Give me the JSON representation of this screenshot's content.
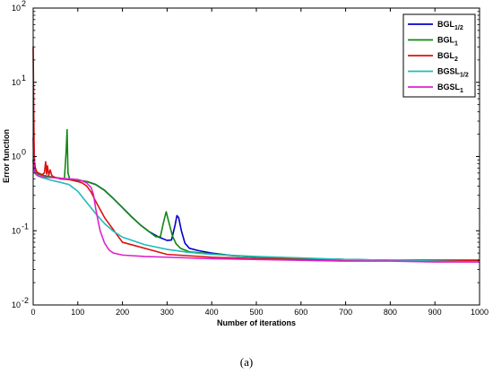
{
  "chart_data": {
    "type": "line",
    "title": "",
    "xlabel": "Number of iterations",
    "ylabel": "Error function",
    "xlim": [
      0,
      1000
    ],
    "ylim": [
      0.01,
      100
    ],
    "yscale": "log",
    "x_ticks": [
      0,
      100,
      200,
      300,
      400,
      500,
      600,
      700,
      800,
      900,
      1000
    ],
    "y_ticks": [
      {
        "value": 0.01,
        "base": "10",
        "exp": "-2"
      },
      {
        "value": 0.1,
        "base": "10",
        "exp": "-1"
      },
      {
        "value": 1,
        "base": "10",
        "exp": "0"
      },
      {
        "value": 10,
        "base": "10",
        "exp": "1"
      },
      {
        "value": 100,
        "base": "10",
        "exp": "2"
      }
    ],
    "grid": false,
    "legend_position": "top-right",
    "series": [
      {
        "name": "BGL",
        "subscript": "1/2",
        "color": "#0000cc",
        "x": [
          0,
          2,
          5,
          10,
          20,
          40,
          60,
          80,
          100,
          120,
          140,
          160,
          180,
          200,
          220,
          240,
          260,
          280,
          300,
          310,
          318,
          322,
          326,
          332,
          340,
          350,
          370,
          400,
          450,
          500,
          600,
          700,
          800,
          900,
          1000
        ],
        "y": [
          0.9,
          0.7,
          0.63,
          0.59,
          0.56,
          0.53,
          0.51,
          0.49,
          0.48,
          0.46,
          0.42,
          0.35,
          0.27,
          0.205,
          0.155,
          0.12,
          0.097,
          0.083,
          0.074,
          0.075,
          0.12,
          0.16,
          0.15,
          0.1,
          0.068,
          0.058,
          0.054,
          0.05,
          0.046,
          0.044,
          0.042,
          0.041,
          0.04,
          0.04,
          0.04
        ]
      },
      {
        "name": "BGL",
        "subscript": "1",
        "color": "#118811",
        "x": [
          0,
          2,
          5,
          10,
          20,
          40,
          60,
          70,
          74,
          76,
          78,
          82,
          90,
          100,
          120,
          140,
          160,
          180,
          200,
          220,
          240,
          260,
          275,
          285,
          292,
          298,
          304,
          312,
          320,
          330,
          350,
          400,
          450,
          500,
          600,
          700,
          800,
          900,
          1000
        ],
        "y": [
          0.9,
          0.7,
          0.63,
          0.59,
          0.56,
          0.53,
          0.51,
          0.5,
          1.2,
          2.3,
          0.6,
          0.49,
          0.48,
          0.48,
          0.46,
          0.42,
          0.35,
          0.27,
          0.205,
          0.155,
          0.12,
          0.097,
          0.083,
          0.083,
          0.13,
          0.18,
          0.13,
          0.085,
          0.067,
          0.058,
          0.052,
          0.049,
          0.046,
          0.044,
          0.042,
          0.041,
          0.04,
          0.04,
          0.04
        ]
      },
      {
        "name": "BGL",
        "subscript": "2",
        "color": "#dd1111",
        "x": [
          0,
          1,
          2,
          3,
          5,
          8,
          12,
          20,
          25,
          28,
          30,
          32,
          35,
          38,
          42,
          50,
          60,
          80,
          100,
          110,
          120,
          130,
          140,
          160,
          200,
          300,
          400,
          500,
          600,
          700,
          800,
          900,
          1000
        ],
        "y": [
          30,
          6,
          1.6,
          0.85,
          0.7,
          0.62,
          0.6,
          0.57,
          0.6,
          0.85,
          0.58,
          0.75,
          0.56,
          0.66,
          0.55,
          0.52,
          0.5,
          0.49,
          0.46,
          0.44,
          0.4,
          0.33,
          0.25,
          0.15,
          0.07,
          0.048,
          0.044,
          0.042,
          0.041,
          0.04,
          0.04,
          0.04,
          0.04
        ]
      },
      {
        "name": "BGSL",
        "subscript": "1/2",
        "color": "#22bbbb",
        "x": [
          0,
          2,
          5,
          10,
          20,
          40,
          60,
          80,
          100,
          120,
          140,
          160,
          180,
          200,
          250,
          300,
          350,
          400,
          500,
          600,
          700,
          800,
          900,
          1000
        ],
        "y": [
          0.85,
          0.65,
          0.58,
          0.55,
          0.52,
          0.48,
          0.45,
          0.42,
          0.34,
          0.24,
          0.17,
          0.125,
          0.098,
          0.082,
          0.065,
          0.056,
          0.051,
          0.048,
          0.045,
          0.043,
          0.041,
          0.04,
          0.039,
          0.038
        ]
      },
      {
        "name": "BGSL",
        "subscript": "1",
        "color": "#dd22cc",
        "x": [
          0,
          1,
          2,
          3,
          5,
          8,
          12,
          20,
          40,
          60,
          80,
          100,
          110,
          120,
          130,
          135,
          140,
          145,
          150,
          160,
          170,
          180,
          200,
          250,
          300,
          400,
          500,
          600,
          700,
          800,
          900,
          1000
        ],
        "y": [
          1.8,
          0.95,
          0.72,
          0.65,
          0.6,
          0.57,
          0.55,
          0.53,
          0.52,
          0.51,
          0.5,
          0.49,
          0.47,
          0.44,
          0.38,
          0.31,
          0.2,
          0.14,
          0.1,
          0.068,
          0.055,
          0.05,
          0.047,
          0.045,
          0.044,
          0.042,
          0.041,
          0.04,
          0.039,
          0.039,
          0.038,
          0.038
        ]
      }
    ]
  },
  "caption": "(a)"
}
